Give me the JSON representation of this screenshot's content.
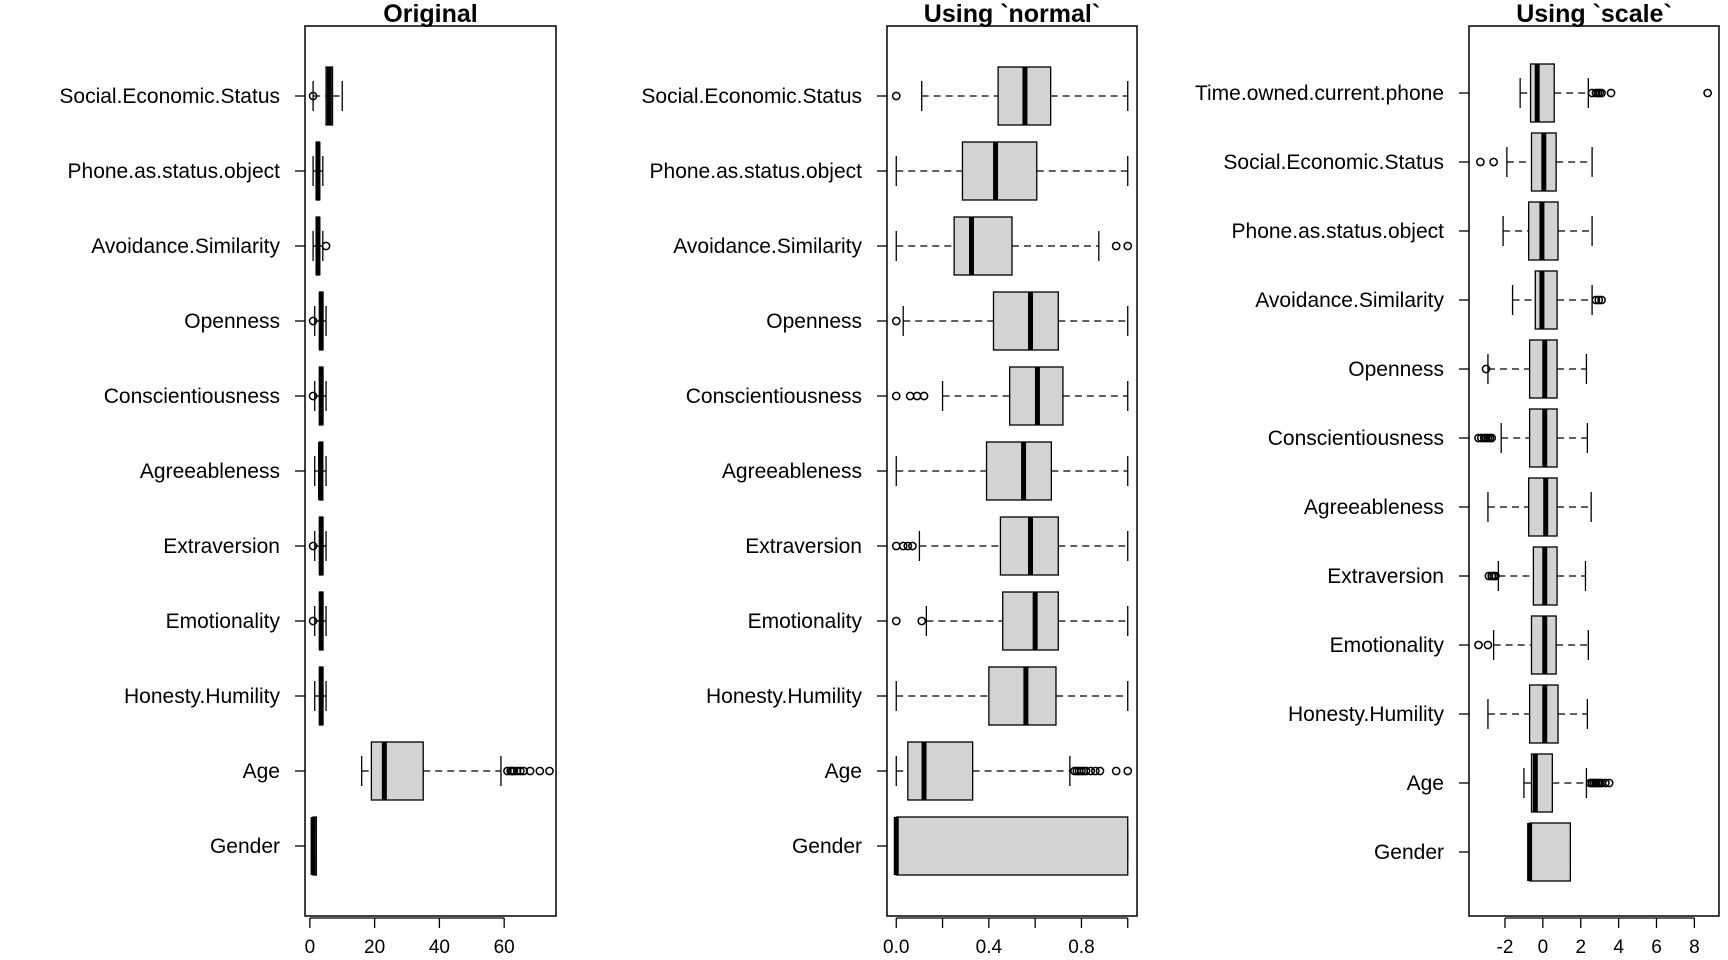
{
  "chart_data": [
    {
      "type": "boxplot",
      "orientation": "horizontal",
      "title": "Original",
      "xlim": [
        -1.5,
        76
      ],
      "xticks": [
        0,
        20,
        40,
        60
      ],
      "tick_labels": [
        "0",
        "20",
        "40",
        "60"
      ],
      "categories": [
        "Social.Economic.Status",
        "Phone.as.status.object",
        "Avoidance.Similarity",
        "Openness",
        "Conscientiousness",
        "Agreeableness",
        "Extraversion",
        "Emotionality",
        "Honesty.Humility",
        "Age",
        "Gender"
      ],
      "boxes": [
        {
          "whisker_low": 1,
          "q1": 5,
          "median": 6,
          "q3": 7,
          "whisker_high": 10,
          "outliers": [
            1
          ]
        },
        {
          "whisker_low": 1,
          "q1": 2,
          "median": 2.5,
          "q3": 3,
          "whisker_high": 4,
          "outliers": []
        },
        {
          "whisker_low": 1,
          "q1": 2,
          "median": 2.5,
          "q3": 3,
          "whisker_high": 4,
          "outliers": [
            5
          ]
        },
        {
          "whisker_low": 1.5,
          "q1": 3,
          "median": 3.5,
          "q3": 4,
          "whisker_high": 5,
          "outliers": [
            1
          ]
        },
        {
          "whisker_low": 1.5,
          "q1": 3,
          "median": 3.5,
          "q3": 4,
          "whisker_high": 5,
          "outliers": [
            1
          ]
        },
        {
          "whisker_low": 1.5,
          "q1": 3,
          "median": 3.3,
          "q3": 4,
          "whisker_high": 5,
          "outliers": []
        },
        {
          "whisker_low": 1.5,
          "q1": 3,
          "median": 3.5,
          "q3": 4,
          "whisker_high": 5,
          "outliers": [
            1
          ]
        },
        {
          "whisker_low": 1.5,
          "q1": 3,
          "median": 3.5,
          "q3": 4,
          "whisker_high": 5,
          "outliers": [
            1
          ]
        },
        {
          "whisker_low": 1.5,
          "q1": 3,
          "median": 3.5,
          "q3": 4,
          "whisker_high": 5,
          "outliers": []
        },
        {
          "whisker_low": 16,
          "q1": 19,
          "median": 23,
          "q3": 35,
          "whisker_high": 59,
          "outliers": [
            61,
            62,
            62.5,
            63,
            64,
            65,
            66,
            68,
            71,
            74
          ]
        },
        {
          "whisker_low": 1,
          "q1": 1,
          "median": 1,
          "q3": 2,
          "whisker_high": 2,
          "outliers": []
        }
      ]
    },
    {
      "type": "boxplot",
      "orientation": "horizontal",
      "title": "Using `normal`",
      "xlim": [
        -0.04,
        1.04
      ],
      "xticks": [
        0,
        0.2,
        0.4,
        0.6,
        0.8,
        1.0
      ],
      "tick_labels": [
        "0.0",
        "",
        "0.4",
        "",
        "0.8",
        ""
      ],
      "categories": [
        "Social.Economic.Status",
        "Phone.as.status.object",
        "Avoidance.Similarity",
        "Openness",
        "Conscientiousness",
        "Agreeableness",
        "Extraversion",
        "Emotionality",
        "Honesty.Humility",
        "Age",
        "Gender"
      ],
      "boxes": [
        {
          "whisker_low": 0.11,
          "q1": 0.44,
          "median": 0.556,
          "q3": 0.667,
          "whisker_high": 1.0,
          "outliers": [
            0.0
          ]
        },
        {
          "whisker_low": 0.0,
          "q1": 0.286,
          "median": 0.429,
          "q3": 0.607,
          "whisker_high": 1.0,
          "outliers": []
        },
        {
          "whisker_low": 0.0,
          "q1": 0.25,
          "median": 0.325,
          "q3": 0.5,
          "whisker_high": 0.875,
          "outliers": [
            0.95,
            1.0
          ]
        },
        {
          "whisker_low": 0.03,
          "q1": 0.42,
          "median": 0.58,
          "q3": 0.7,
          "whisker_high": 1.0,
          "outliers": [
            0.0
          ]
        },
        {
          "whisker_low": 0.2,
          "q1": 0.49,
          "median": 0.61,
          "q3": 0.72,
          "whisker_high": 1.0,
          "outliers": [
            0.0,
            0.06,
            0.09,
            0.12
          ]
        },
        {
          "whisker_low": 0.0,
          "q1": 0.39,
          "median": 0.55,
          "q3": 0.67,
          "whisker_high": 1.0,
          "outliers": []
        },
        {
          "whisker_low": 0.1,
          "q1": 0.45,
          "median": 0.58,
          "q3": 0.7,
          "whisker_high": 1.0,
          "outliers": [
            0.0,
            0.03,
            0.05,
            0.07
          ]
        },
        {
          "whisker_low": 0.13,
          "q1": 0.46,
          "median": 0.6,
          "q3": 0.7,
          "whisker_high": 1.0,
          "outliers": [
            0.0,
            0.11
          ]
        },
        {
          "whisker_low": 0.0,
          "q1": 0.4,
          "median": 0.56,
          "q3": 0.69,
          "whisker_high": 1.0,
          "outliers": []
        },
        {
          "whisker_low": 0.0,
          "q1": 0.05,
          "median": 0.12,
          "q3": 0.33,
          "whisker_high": 0.75,
          "outliers": [
            0.77,
            0.78,
            0.79,
            0.8,
            0.81,
            0.82,
            0.84,
            0.86,
            0.88,
            0.95,
            1.0
          ]
        },
        {
          "whisker_low": 0.0,
          "q1": 0.0,
          "median": 0.0,
          "q3": 1.0,
          "whisker_high": 1.0,
          "outliers": []
        }
      ]
    },
    {
      "type": "boxplot",
      "orientation": "horizontal",
      "title": "Using `scale`",
      "xlim": [
        -3.9,
        9.3
      ],
      "xticks": [
        -2,
        0,
        2,
        4,
        6,
        8
      ],
      "tick_labels": [
        "-2",
        "0",
        "2",
        "4",
        "6",
        "8"
      ],
      "categories": [
        "Time.owned.current.phone",
        "Social.Economic.Status",
        "Phone.as.status.object",
        "Avoidance.Similarity",
        "Openness",
        "Conscientiousness",
        "Agreeableness",
        "Extraversion",
        "Emotionality",
        "Honesty.Humility",
        "Age",
        "Gender"
      ],
      "boxes": [
        {
          "whisker_low": -1.2,
          "q1": -0.65,
          "median": -0.3,
          "q3": 0.6,
          "whisker_high": 2.4,
          "outliers": [
            2.6,
            2.8,
            2.9,
            3.0,
            3.1,
            3.6,
            8.7
          ]
        },
        {
          "whisker_low": -1.9,
          "q1": -0.6,
          "median": 0.05,
          "q3": 0.7,
          "whisker_high": 2.6,
          "outliers": [
            -3.3,
            -2.6
          ]
        },
        {
          "whisker_low": -2.1,
          "q1": -0.75,
          "median": -0.05,
          "q3": 0.8,
          "whisker_high": 2.6,
          "outliers": []
        },
        {
          "whisker_low": -1.6,
          "q1": -0.4,
          "median": -0.05,
          "q3": 0.75,
          "whisker_high": 2.6,
          "outliers": [
            2.8,
            2.95,
            3.1
          ]
        },
        {
          "whisker_low": -2.9,
          "q1": -0.7,
          "median": 0.1,
          "q3": 0.75,
          "whisker_high": 2.3,
          "outliers": [
            -3.0
          ]
        },
        {
          "whisker_low": -2.2,
          "q1": -0.7,
          "median": 0.1,
          "q3": 0.75,
          "whisker_high": 2.35,
          "outliers": [
            -3.4,
            -3.25,
            -3.1,
            -3.0,
            -2.9,
            -2.8,
            -2.7
          ]
        },
        {
          "whisker_low": -2.9,
          "q1": -0.75,
          "median": 0.15,
          "q3": 0.75,
          "whisker_high": 2.55,
          "outliers": []
        },
        {
          "whisker_low": -2.35,
          "q1": -0.5,
          "median": 0.1,
          "q3": 0.75,
          "whisker_high": 2.25,
          "outliers": [
            -2.85,
            -2.7,
            -2.6,
            -2.5
          ]
        },
        {
          "whisker_low": -2.6,
          "q1": -0.6,
          "median": 0.1,
          "q3": 0.7,
          "whisker_high": 2.4,
          "outliers": [
            -3.4,
            -2.9
          ]
        },
        {
          "whisker_low": -2.9,
          "q1": -0.7,
          "median": 0.1,
          "q3": 0.8,
          "whisker_high": 2.35,
          "outliers": []
        },
        {
          "whisker_low": -1.0,
          "q1": -0.6,
          "median": -0.4,
          "q3": 0.5,
          "whisker_high": 2.3,
          "outliers": [
            2.5,
            2.6,
            2.7,
            2.8,
            2.9,
            3.0,
            3.1,
            3.3,
            3.5
          ]
        },
        {
          "whisker_low": -0.7,
          "q1": -0.7,
          "median": -0.7,
          "q3": 1.45,
          "whisker_high": 1.45,
          "outliers": []
        }
      ]
    }
  ],
  "style": {
    "box_fill": "#d3d3d3",
    "line_color": "#000000"
  }
}
